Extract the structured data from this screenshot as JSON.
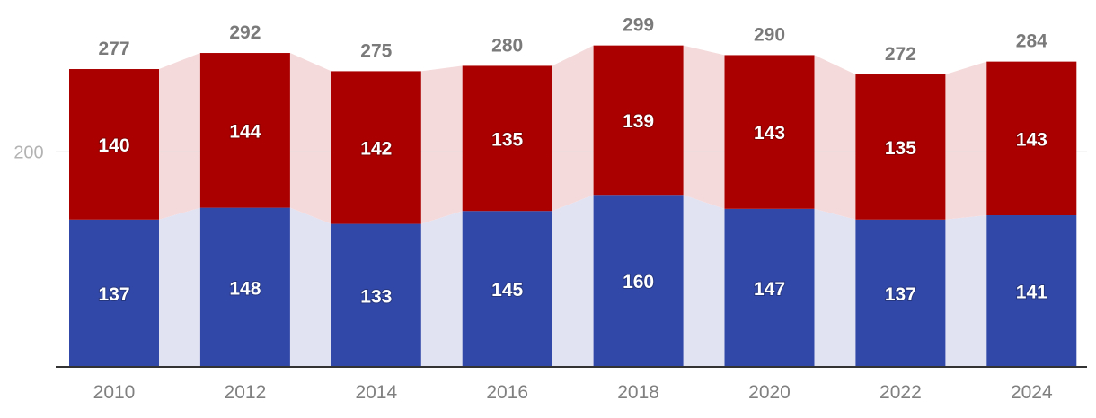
{
  "chart_data": {
    "type": "bar",
    "stacked": true,
    "categories": [
      "2010",
      "2012",
      "2014",
      "2016",
      "2018",
      "2020",
      "2022",
      "2024"
    ],
    "series": [
      {
        "values": [
          137,
          148,
          133,
          145,
          160,
          147,
          137,
          141
        ],
        "color": "#3248a8",
        "band_color": "#e1e3f3"
      },
      {
        "values": [
          140,
          144,
          142,
          135,
          139,
          143,
          135,
          143
        ],
        "color": "#aa0000",
        "band_color": "#f5dadb"
      }
    ],
    "totals": [
      277,
      292,
      275,
      280,
      299,
      290,
      272,
      284
    ],
    "y_ticks": [
      200
    ],
    "ylim": [
      0,
      300
    ],
    "grid": true,
    "legend": "none",
    "title": "",
    "xlabel": "",
    "ylabel": ""
  }
}
